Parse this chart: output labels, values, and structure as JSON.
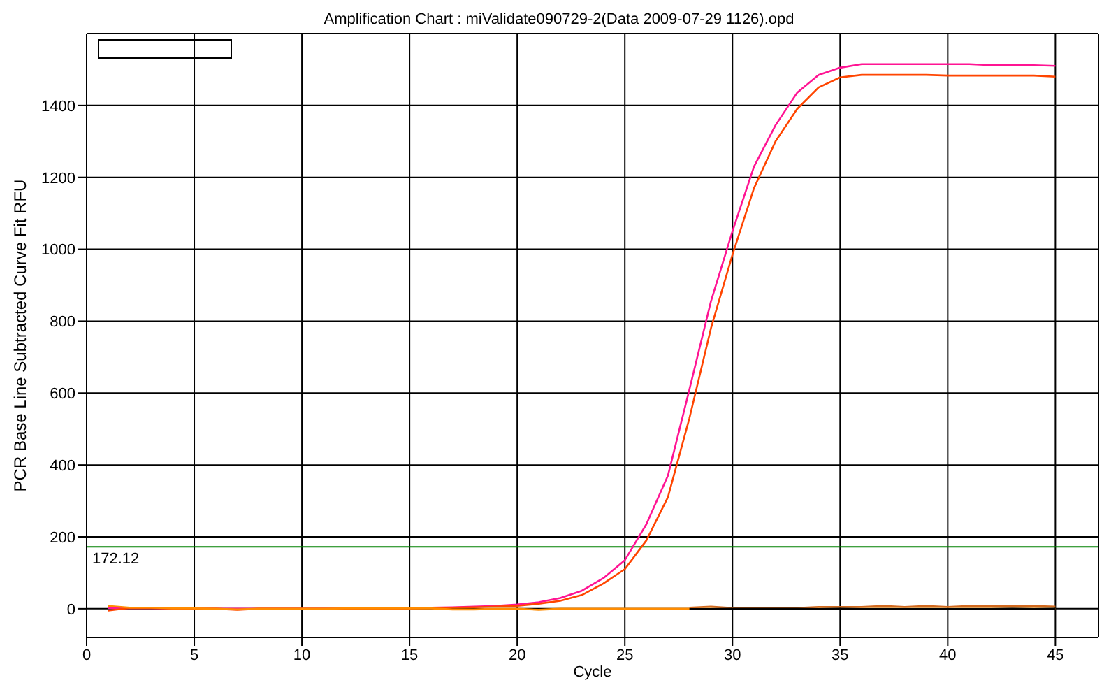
{
  "chart_data": {
    "type": "line",
    "title": "Amplification Chart : miValidate090729-2(Data 2009-07-29 1126).opd",
    "xlabel": "Cycle",
    "ylabel": "PCR Base Line Subtracted Curve Fit RFU",
    "xlim": [
      0,
      47
    ],
    "xticks": [
      0,
      5,
      10,
      15,
      20,
      25,
      30,
      35,
      40,
      45
    ],
    "ylim": [
      -80,
      1600
    ],
    "yticks": [
      0,
      200,
      400,
      600,
      800,
      1000,
      1200,
      1400
    ],
    "grid": true,
    "marker": "none",
    "line_style": "solid",
    "ref_lines": [
      {
        "axis": "y",
        "value": 172.12,
        "label": "172.12",
        "color": "#008000"
      }
    ],
    "series": [
      {
        "color": "#ff1493",
        "x": [
          1,
          2,
          3,
          4,
          5,
          6,
          7,
          8,
          9,
          10,
          11,
          12,
          13,
          14,
          15,
          16,
          17,
          18,
          19,
          20,
          21,
          22,
          23,
          24,
          25,
          26,
          27,
          28,
          29,
          30,
          31,
          32,
          33,
          34,
          35,
          36,
          37,
          38,
          39,
          40,
          41,
          42,
          43,
          44,
          45
        ],
        "values": [
          2,
          2,
          2,
          1,
          0,
          0,
          0,
          0,
          0,
          0,
          0,
          0,
          0,
          1,
          2,
          3,
          4,
          6,
          8,
          12,
          18,
          30,
          50,
          85,
          135,
          235,
          370,
          610,
          855,
          1050,
          1230,
          1345,
          1435,
          1485,
          1505,
          1515,
          1515,
          1515,
          1515,
          1515,
          1515,
          1512,
          1512,
          1512,
          1510
        ]
      },
      {
        "color": "#ff4500",
        "x": [
          1,
          2,
          3,
          4,
          5,
          6,
          7,
          8,
          9,
          10,
          11,
          12,
          13,
          14,
          15,
          16,
          17,
          18,
          19,
          20,
          21,
          22,
          23,
          24,
          25,
          26,
          27,
          28,
          29,
          30,
          31,
          32,
          33,
          34,
          35,
          36,
          37,
          38,
          39,
          40,
          41,
          42,
          43,
          44,
          45
        ],
        "values": [
          -5,
          2,
          2,
          1,
          0,
          0,
          -3,
          0,
          0,
          0,
          0,
          0,
          0,
          0,
          1,
          2,
          3,
          4,
          6,
          8,
          14,
          22,
          38,
          70,
          110,
          190,
          310,
          530,
          780,
          985,
          1170,
          1300,
          1390,
          1450,
          1478,
          1485,
          1485,
          1485,
          1485,
          1483,
          1483,
          1483,
          1483,
          1483,
          1480
        ]
      },
      {
        "color": "#ff8c00",
        "x": [
          1,
          2,
          3,
          4,
          5,
          6,
          7,
          8,
          9,
          10,
          11,
          12,
          13,
          14,
          15,
          16,
          17,
          18,
          19,
          20,
          21,
          22,
          23,
          24,
          25,
          26,
          27,
          28,
          29,
          30,
          31,
          32,
          33,
          34,
          35,
          36,
          37,
          38,
          39,
          40,
          41,
          42,
          43,
          44,
          45
        ],
        "values": [
          8,
          3,
          3,
          1,
          1,
          0,
          -2,
          0,
          0,
          0,
          0,
          1,
          1,
          1,
          1,
          1,
          -2,
          -2,
          0,
          0,
          -3,
          0,
          0,
          0,
          0,
          0,
          0,
          0,
          0,
          0,
          0,
          0,
          0,
          0,
          0,
          0,
          0,
          0,
          0,
          0,
          0,
          0,
          0,
          0,
          0
        ]
      },
      {
        "color": "#d2691e",
        "x": [
          28,
          29,
          30,
          31,
          32,
          33,
          34,
          35,
          36,
          37,
          38,
          39,
          40,
          41,
          42,
          43,
          44,
          45
        ],
        "values": [
          3,
          6,
          2,
          2,
          2,
          2,
          5,
          5,
          5,
          8,
          5,
          8,
          5,
          8,
          8,
          8,
          8,
          6
        ]
      },
      {
        "color": "#000000",
        "x": [
          28,
          29,
          30,
          31,
          32,
          33,
          34,
          35,
          36,
          37,
          38,
          39,
          40,
          41,
          42,
          43,
          44,
          45
        ],
        "values": [
          -1,
          -1,
          0,
          0,
          0,
          0,
          -1,
          0,
          -1,
          -1,
          -1,
          -1,
          -1,
          -1,
          -1,
          0,
          -1,
          0
        ]
      }
    ]
  }
}
